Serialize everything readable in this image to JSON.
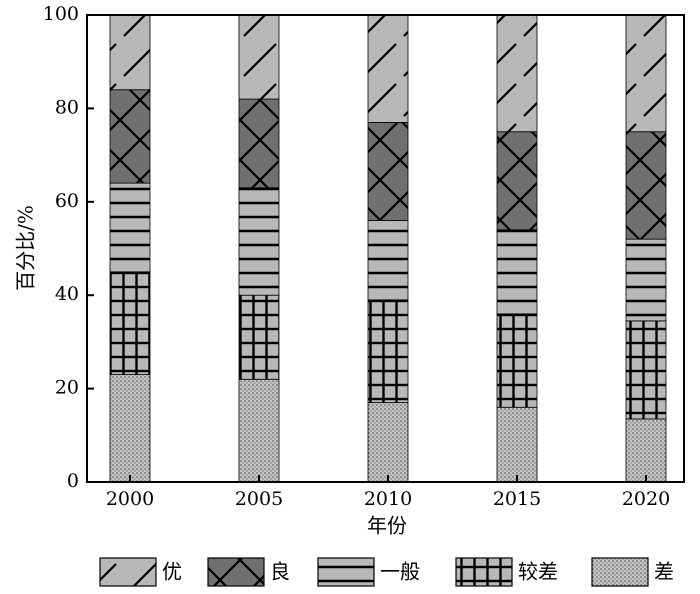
{
  "chart_data": {
    "type": "bar",
    "stacked": true,
    "xlabel": "年份",
    "ylabel": "百分比/%",
    "ylim": [
      0,
      100
    ],
    "yticks": [
      "0",
      "20",
      "40",
      "60",
      "80",
      "100"
    ],
    "categories": [
      "2000",
      "2005",
      "2010",
      "2015",
      "2020"
    ],
    "series": [
      {
        "name": "差",
        "pattern": "dots",
        "values": [
          23,
          22,
          17,
          16,
          13.5
        ]
      },
      {
        "name": "较差",
        "pattern": "grid",
        "values": [
          22,
          18,
          22,
          20,
          21
        ]
      },
      {
        "name": "一般",
        "pattern": "hlines",
        "values": [
          19,
          23,
          17,
          18,
          17.5
        ]
      },
      {
        "name": "良",
        "pattern": "crosses",
        "values": [
          20,
          19,
          21,
          21,
          23
        ]
      },
      {
        "name": "优",
        "pattern": "slashes",
        "values": [
          16,
          18,
          23,
          25,
          25
        ]
      }
    ],
    "legend_placement": "bottom",
    "grid": false,
    "colors": {
      "light": "#b8b8b8",
      "dark": "#707070",
      "line": "#000000"
    }
  }
}
